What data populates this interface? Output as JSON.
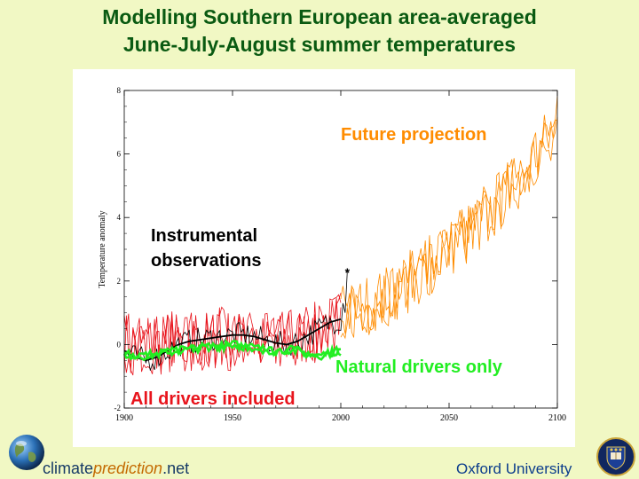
{
  "slide": {
    "title_line1": "Modelling Southern European area-averaged",
    "title_line2": "June-July-August summer temperatures"
  },
  "footer": {
    "brand_prefix": "climate",
    "brand_italic": "prediction",
    "brand_suffix": ".net",
    "institution": "Oxford University"
  },
  "colors": {
    "background": "#f1f8c4",
    "title": "#0a5a12",
    "observations": "#000000",
    "all_drivers": "#e8141c",
    "natural_drivers": "#22ee22",
    "future": "#ff8c00"
  },
  "chart_data": {
    "type": "line",
    "ylabel": "Temperature anomaly",
    "xlim": [
      1900,
      2100
    ],
    "ylim": [
      -2,
      8
    ],
    "xticks": [
      1900,
      1950,
      2000,
      2050,
      2100
    ],
    "yticks": [
      -2,
      0,
      2,
      4,
      6,
      8
    ],
    "annotations": {
      "future": "Future projection",
      "instrumental_line1": "Instrumental",
      "instrumental_line2": "observations",
      "natural": "Natural drivers only",
      "all": "All drivers included",
      "star": "*"
    },
    "star_point": {
      "x": 2003,
      "y": 2.3
    },
    "series": [
      {
        "name": "All drivers included",
        "color": "#e8141c",
        "x": [
          1900,
          1905,
          1910,
          1915,
          1920,
          1925,
          1930,
          1935,
          1940,
          1945,
          1950,
          1955,
          1960,
          1965,
          1970,
          1975,
          1980,
          1985,
          1990,
          1995,
          2000
        ],
        "values": [
          0.1,
          0.0,
          0.1,
          0.0,
          0.1,
          0.0,
          0.05,
          0.1,
          0.15,
          0.2,
          0.15,
          0.1,
          0.05,
          0.0,
          0.0,
          0.1,
          0.2,
          0.3,
          0.4,
          0.6,
          0.8
        ],
        "spread": 0.9
      },
      {
        "name": "Natural drivers only",
        "color": "#22ee22",
        "x": [
          1900,
          1905,
          1910,
          1915,
          1920,
          1925,
          1930,
          1935,
          1940,
          1945,
          1950,
          1955,
          1960,
          1965,
          1970,
          1975,
          1980,
          1985,
          1990,
          1995,
          2000
        ],
        "values": [
          -0.3,
          -0.35,
          -0.35,
          -0.3,
          -0.25,
          -0.2,
          -0.15,
          -0.1,
          -0.05,
          -0.05,
          0.0,
          -0.05,
          -0.1,
          -0.15,
          -0.2,
          -0.15,
          -0.2,
          -0.3,
          -0.35,
          -0.25,
          -0.2
        ],
        "spread": 0.2
      },
      {
        "name": "Instrumental observations",
        "color": "#000000",
        "x": [
          1900,
          1905,
          1910,
          1915,
          1920,
          1925,
          1930,
          1935,
          1940,
          1945,
          1950,
          1955,
          1960,
          1965,
          1970,
          1975,
          1980,
          1985,
          1990,
          1995,
          2000,
          2003
        ],
        "values": [
          -0.2,
          -0.4,
          -0.5,
          -0.4,
          -0.2,
          0.0,
          0.1,
          0.15,
          0.2,
          0.25,
          0.3,
          0.3,
          0.25,
          0.15,
          0.05,
          0.0,
          0.1,
          0.3,
          0.5,
          0.7,
          0.8,
          2.3
        ],
        "spread": 0.4
      },
      {
        "name": "Future projection",
        "color": "#ff8c00",
        "x": [
          2000,
          2010,
          2020,
          2030,
          2040,
          2050,
          2060,
          2070,
          2080,
          2090,
          2100
        ],
        "values": [
          0.9,
          1.2,
          1.5,
          1.9,
          2.4,
          3.0,
          3.6,
          4.3,
          5.0,
          6.0,
          6.9
        ],
        "spread": 0.9
      }
    ]
  }
}
